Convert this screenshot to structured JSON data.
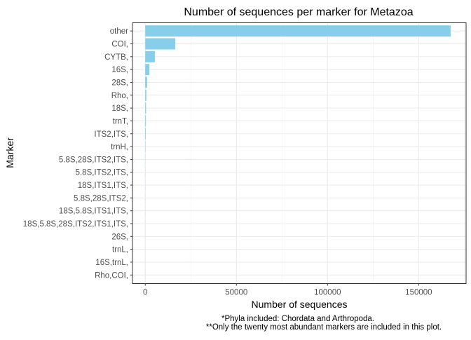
{
  "chart_data": {
    "type": "bar",
    "orientation": "horizontal",
    "title": "Number of sequences per marker for Metazoa",
    "xlabel": "Number of sequences",
    "ylabel": "Marker",
    "categories": [
      "other",
      "COI,",
      "CYTB,",
      "16S,",
      "28S,",
      "Rho,",
      "18S,",
      "trnT,",
      "ITS2,ITS,",
      "trnH,",
      "5.8S,28S,ITS2,ITS,",
      "5.8S,ITS2,ITS,",
      "18S,ITS1,ITS,",
      "5.8S,28S,ITS2,",
      "18S,5.8S,ITS1,ITS,",
      "18S,5.8S,28S,ITS2,ITS1,ITS,",
      "26S,",
      "trnL,",
      "16S,trnL,",
      "Rho,COI,"
    ],
    "values": [
      167500,
      16500,
      5300,
      2300,
      1000,
      600,
      450,
      380,
      300,
      150,
      60,
      50,
      45,
      40,
      35,
      30,
      25,
      22,
      20,
      18
    ],
    "xlim": [
      -7000,
      176000
    ],
    "xticks": [
      0,
      50000,
      100000,
      150000
    ],
    "xtick_labels": [
      "0",
      "50000",
      "100000",
      "150000"
    ],
    "grid": true,
    "bar_color": "#87ceeb",
    "caption": [
      "*Phyla included: Chordata and Arthropoda.",
      "**Only the twenty most abundant markers are included in this plot."
    ]
  }
}
